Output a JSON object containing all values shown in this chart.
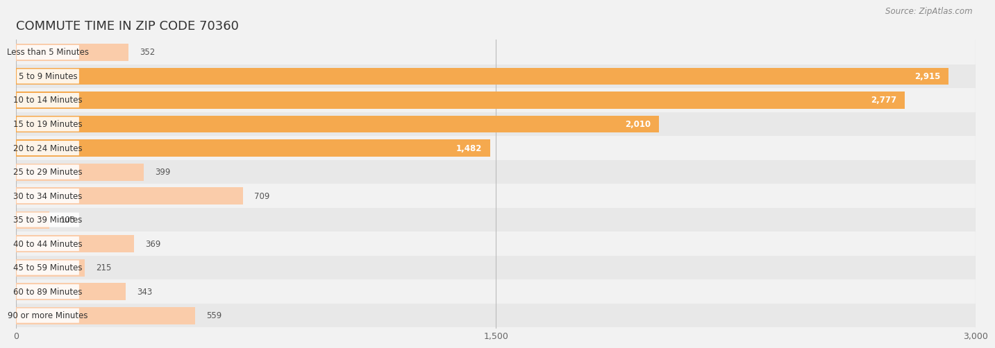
{
  "title": "COMMUTE TIME IN ZIP CODE 70360",
  "source": "Source: ZipAtlas.com",
  "categories": [
    "Less than 5 Minutes",
    "5 to 9 Minutes",
    "10 to 14 Minutes",
    "15 to 19 Minutes",
    "20 to 24 Minutes",
    "25 to 29 Minutes",
    "30 to 34 Minutes",
    "35 to 39 Minutes",
    "40 to 44 Minutes",
    "45 to 59 Minutes",
    "60 to 89 Minutes",
    "90 or more Minutes"
  ],
  "values": [
    352,
    2915,
    2777,
    2010,
    1482,
    399,
    709,
    103,
    369,
    215,
    343,
    559
  ],
  "bar_color_high": "#F5A94E",
  "bar_color_low": "#FACCAA",
  "threshold": 1000,
  "xlim": [
    0,
    3000
  ],
  "xticks": [
    0,
    1500,
    3000
  ],
  "background_color": "#F2F2F2",
  "row_color_light": "#F2F2F2",
  "row_color_dark": "#E8E8E8",
  "title_fontsize": 13,
  "label_fontsize": 8.5,
  "value_fontsize": 8.5,
  "source_fontsize": 8.5
}
